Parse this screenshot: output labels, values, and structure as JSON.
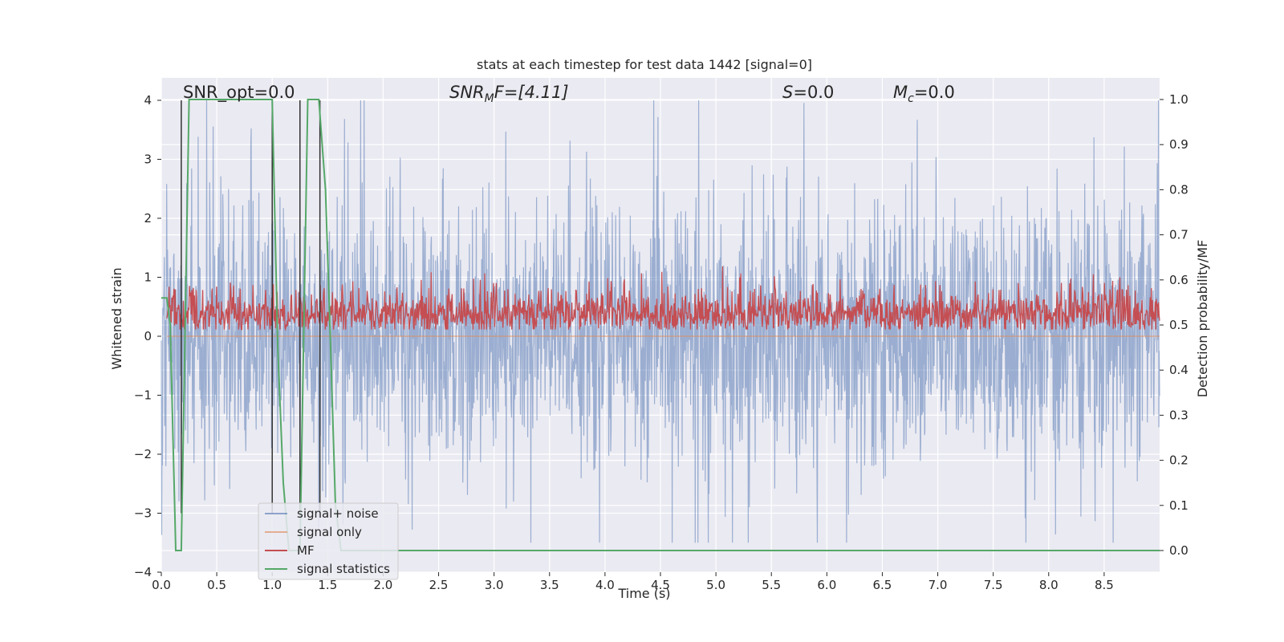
{
  "chart_data": {
    "type": "line",
    "title": "stats at each timestep for test data 1442 [signal=0]",
    "xlabel": "Time (s)",
    "ylabel_left": "Whitened strain",
    "ylabel_right": "Detection probability/MF",
    "xlim": [
      0,
      9
    ],
    "ylim_left": [
      -4.0,
      4.0
    ],
    "ylim_right": [
      -0.05,
      1.05
    ],
    "x_ticks": [
      "0.0",
      "0.5",
      "1.0",
      "1.5",
      "2.0",
      "2.5",
      "3.0",
      "3.5",
      "4.0",
      "4.5",
      "5.0",
      "5.5",
      "6.0",
      "6.5",
      "7.0",
      "7.5",
      "8.0",
      "8.5"
    ],
    "y_ticks_left": [
      "4",
      "3",
      "2",
      "1",
      "0",
      "−1",
      "−2",
      "−3",
      "−4"
    ],
    "y_ticks_right": [
      "1.0",
      "0.9",
      "0.8",
      "0.7",
      "0.6",
      "0.5",
      "0.4",
      "0.3",
      "0.2",
      "0.1",
      "0.0"
    ],
    "grid": true,
    "legend_position": "lower-left",
    "annotations": {
      "snr_opt": "SNR_opt=0.0",
      "snr_mf_main": "SNR",
      "snr_mf_sub": "M",
      "snr_mf_rest": "F=[4.11]",
      "s_main": "S",
      "s_rest": "=0.0",
      "mc_main": "M",
      "mc_sub": "c",
      "mc_rest": "=0.0"
    },
    "series": [
      {
        "name": "signal+ noise",
        "color": "#4c72b0",
        "description_values": {
          "amplitude_range": [
            -3.5,
            4.0
          ]
        }
      },
      {
        "name": "signal only",
        "color": "#dd8452",
        "values_constant": 0.0
      },
      {
        "name": "MF",
        "color": "#c44e52",
        "approx_range": [
          0.0,
          1.0
        ]
      },
      {
        "name": "signal statistics",
        "color": "#55a868",
        "x": [
          0.0,
          0.05,
          0.08,
          0.13,
          0.18,
          0.25,
          0.35,
          0.95,
          1.0,
          1.05,
          1.1,
          1.15,
          1.25,
          1.32,
          1.42,
          1.48,
          1.52,
          1.57,
          1.62,
          2.0,
          9.0
        ],
        "y": [
          0.56,
          0.56,
          0.5,
          0.0,
          0.0,
          1.0,
          1.0,
          1.0,
          1.0,
          0.45,
          0.15,
          0.0,
          0.0,
          1.0,
          1.0,
          0.8,
          0.5,
          0.1,
          0.0,
          0.0,
          0.0
        ]
      }
    ],
    "vertical_markers_x": [
      0.18,
      1.0,
      1.25,
      1.43
    ]
  },
  "colors": {
    "plot_bg": "#eaeaf2",
    "grid": "#ffffff",
    "noise": "#4c72b0",
    "signal_only": "#dd8452",
    "mf": "#c44e52",
    "stats": "#55a868",
    "marker": "#333333"
  }
}
